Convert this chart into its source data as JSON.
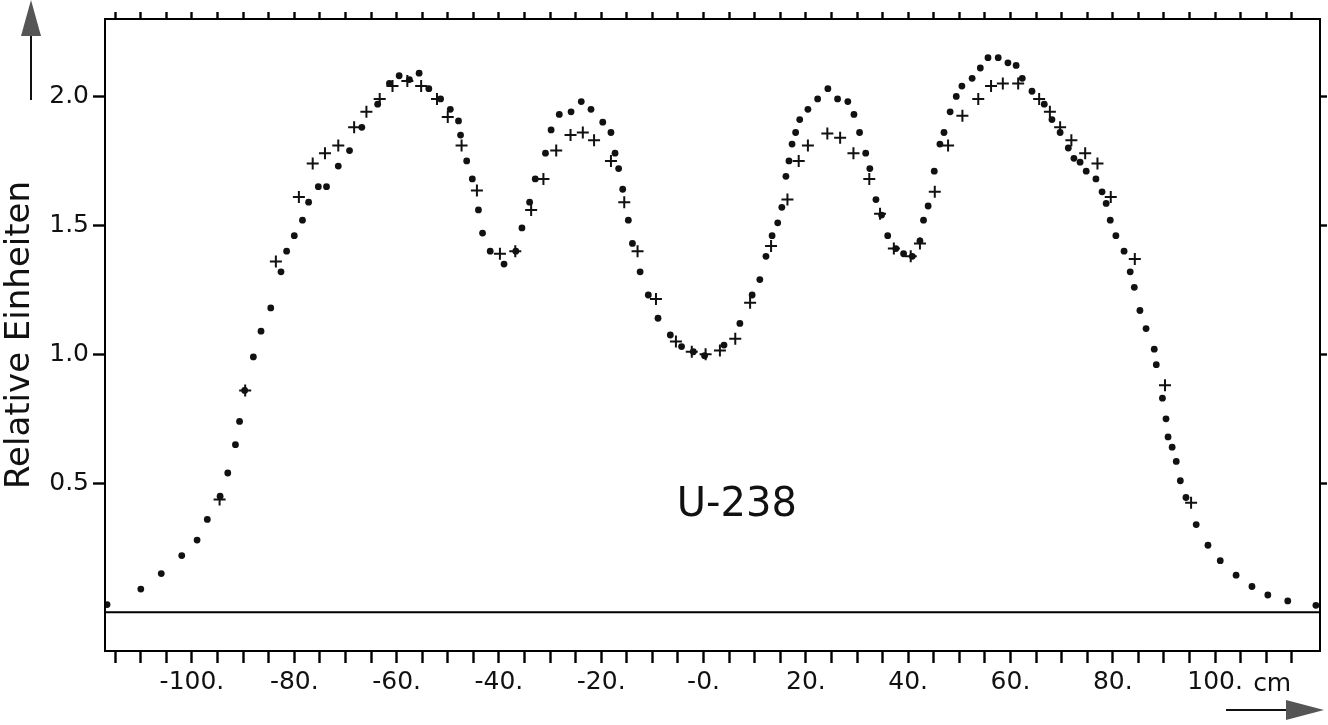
{
  "chart_data": {
    "type": "scatter",
    "ylabel": "Relative Einheiten",
    "xlabel": "cm",
    "annotations": [
      "U-238"
    ],
    "xlim": [
      -117,
      120.5
    ],
    "ylim": [
      -0.15,
      2.3
    ],
    "xticks": [
      {
        "value": -115,
        "label": null
      },
      {
        "value": -110,
        "label": null
      },
      {
        "value": -105,
        "label": null
      },
      {
        "value": -100,
        "label": "-100."
      },
      {
        "value": -95,
        "label": null
      },
      {
        "value": -90,
        "label": null
      },
      {
        "value": -85,
        "label": null
      },
      {
        "value": -80,
        "label": "-80."
      },
      {
        "value": -75,
        "label": null
      },
      {
        "value": -70,
        "label": null
      },
      {
        "value": -65,
        "label": null
      },
      {
        "value": -60,
        "label": "-60."
      },
      {
        "value": -55,
        "label": null
      },
      {
        "value": -50,
        "label": null
      },
      {
        "value": -45,
        "label": null
      },
      {
        "value": -40,
        "label": "-40."
      },
      {
        "value": -35,
        "label": null
      },
      {
        "value": -30,
        "label": null
      },
      {
        "value": -25,
        "label": null
      },
      {
        "value": -20,
        "label": "-20."
      },
      {
        "value": -15,
        "label": null
      },
      {
        "value": -10,
        "label": null
      },
      {
        "value": -5,
        "label": null
      },
      {
        "value": 0,
        "label": "-0."
      },
      {
        "value": 5,
        "label": null
      },
      {
        "value": 10,
        "label": null
      },
      {
        "value": 15,
        "label": null
      },
      {
        "value": 20,
        "label": "20."
      },
      {
        "value": 25,
        "label": null
      },
      {
        "value": 30,
        "label": null
      },
      {
        "value": 35,
        "label": null
      },
      {
        "value": 40,
        "label": "40."
      },
      {
        "value": 45,
        "label": null
      },
      {
        "value": 50,
        "label": null
      },
      {
        "value": 55,
        "label": null
      },
      {
        "value": 60,
        "label": "60."
      },
      {
        "value": 65,
        "label": null
      },
      {
        "value": 70,
        "label": null
      },
      {
        "value": 75,
        "label": null
      },
      {
        "value": 80,
        "label": "80."
      },
      {
        "value": 85,
        "label": null
      },
      {
        "value": 90,
        "label": null
      },
      {
        "value": 95,
        "label": null
      },
      {
        "value": 100,
        "label": "100."
      },
      {
        "value": 105,
        "label": null
      },
      {
        "value": 110,
        "label": null
      },
      {
        "value": 115,
        "label": null
      }
    ],
    "yticks": [
      {
        "value": 0.5,
        "label": "0.5"
      },
      {
        "value": 1,
        "label": "1.0"
      },
      {
        "value": 1.5,
        "label": "1.5"
      },
      {
        "value": 2,
        "label": "2.0"
      }
    ],
    "grid": false,
    "legend": false,
    "ref_lines": [
      {
        "axis": "y",
        "value": 0,
        "color": "#000000"
      }
    ],
    "series": [
      {
        "color": "#111111",
        "marker": "circle",
        "x": [
          -116.6,
          -110,
          -106,
          -102,
          -99,
          -97,
          -94.5,
          -93,
          -91.5,
          -90.7,
          -89.7,
          -88,
          -86.5,
          -84.6,
          -82.6,
          -81.5,
          -80,
          -78.4,
          -77.2,
          -75.3,
          -73.7,
          -71.4,
          -69.2,
          -66.8,
          -63.7,
          -61.4,
          -59.5,
          -57.5,
          -55.6,
          -53.7,
          -51.4,
          -49.5,
          -47.9,
          -47.5,
          -46.3,
          -45.2,
          -44,
          -43.2,
          -41.7,
          -39,
          -36.7,
          -35.5,
          -34,
          -32.9,
          -30.9,
          -29.8,
          -28.2,
          -25.9,
          -23.9,
          -22,
          -19.7,
          -18.1,
          -17.3,
          -16.6,
          -15.8,
          -14.7,
          -13.9,
          -12.4,
          -10.8,
          -8.9,
          -6.5,
          -4.3,
          -2,
          0.2,
          4,
          7.1,
          9.5,
          11,
          12.2,
          13.4,
          14.5,
          15.3,
          16.1,
          16.7,
          17.3,
          18,
          18.8,
          20.4,
          22.3,
          24.3,
          26.2,
          28.2,
          29.4,
          30.5,
          31.7,
          32.5,
          33.7,
          34.8,
          36,
          37.6,
          39.1,
          40.8,
          42.3,
          43,
          43.9,
          45.1,
          46.2,
          47,
          48.2,
          49.4,
          50.5,
          52.5,
          54.1,
          55.6,
          57.6,
          59.5,
          61.1,
          62.3,
          64.2,
          66.6,
          68.1,
          69.7,
          71.3,
          72.4,
          73.6,
          74.8,
          76.7,
          77.9,
          78.7,
          79.5,
          80.6,
          82.2,
          83.4,
          84.2,
          85.3,
          86.5,
          88.1,
          88.5,
          89.7,
          90.4,
          90.8,
          91.6,
          92.4,
          93.2,
          94.3,
          96.3,
          98.6,
          101,
          104.1,
          107.2,
          110.3,
          114.2,
          119.7
        ],
        "values": [
          0.03,
          0.09,
          0.15,
          0.22,
          0.28,
          0.36,
          0.45,
          0.54,
          0.65,
          0.74,
          0.86,
          0.99,
          1.09,
          1.18,
          1.32,
          1.4,
          1.46,
          1.52,
          1.59,
          1.65,
          1.65,
          1.73,
          1.79,
          1.88,
          1.97,
          2.05,
          2.08,
          2.065,
          2.09,
          2.03,
          1.99,
          1.95,
          1.905,
          1.85,
          1.75,
          1.68,
          1.56,
          1.47,
          1.4,
          1.35,
          1.4,
          1.49,
          1.59,
          1.68,
          1.78,
          1.87,
          1.93,
          1.94,
          1.98,
          1.95,
          1.9,
          1.86,
          1.78,
          1.72,
          1.64,
          1.52,
          1.43,
          1.32,
          1.23,
          1.14,
          1.075,
          1.03,
          1.01,
          0.995,
          1.036,
          1.12,
          1.23,
          1.29,
          1.38,
          1.46,
          1.51,
          1.57,
          1.69,
          1.75,
          1.815,
          1.86,
          1.91,
          1.95,
          1.99,
          2.03,
          1.99,
          1.98,
          1.93,
          1.86,
          1.78,
          1.72,
          1.6,
          1.54,
          1.46,
          1.41,
          1.39,
          1.38,
          1.44,
          1.52,
          1.575,
          1.71,
          1.815,
          1.86,
          1.94,
          2,
          2.04,
          2.07,
          2.11,
          2.15,
          2.15,
          2.13,
          2.12,
          2.07,
          2.02,
          1.97,
          1.91,
          1.86,
          1.8,
          1.76,
          1.745,
          1.71,
          1.68,
          1.63,
          1.585,
          1.52,
          1.46,
          1.4,
          1.32,
          1.26,
          1.17,
          1.1,
          1.02,
          0.96,
          0.83,
          0.75,
          0.68,
          0.64,
          0.585,
          0.51,
          0.445,
          0.34,
          0.26,
          0.2,
          0.144,
          0.1,
          0.067,
          0.044,
          0.027
        ]
      },
      {
        "color": "#111111",
        "marker": "cross",
        "x": [
          -94.6,
          -89.6,
          -83.6,
          -79.1,
          -76.4,
          -74,
          -71.4,
          -68.3,
          -65.9,
          -63.3,
          -60.8,
          -57.9,
          -55.2,
          -52.1,
          -50,
          -47.3,
          -44.3,
          -39.8,
          -36.8,
          -33.7,
          -31.3,
          -28.8,
          -26,
          -23.6,
          -21.4,
          -18.1,
          -15.5,
          -12.9,
          -9.3,
          -5.4,
          -2.3,
          0.4,
          3.2,
          6.2,
          9.1,
          13.2,
          16.4,
          18.6,
          20.4,
          24.2,
          26.7,
          29.3,
          32.4,
          34.5,
          37.2,
          40.5,
          42.3,
          45.2,
          47.8,
          50.6,
          53.7,
          56.2,
          58.5,
          61.5,
          65.6,
          67.7,
          69.7,
          71.9,
          74.6,
          77,
          79.6,
          84.3,
          90.2,
          95.3
        ],
        "values": [
          0.437,
          0.86,
          1.36,
          1.61,
          1.74,
          1.78,
          1.81,
          1.88,
          1.94,
          1.99,
          2.04,
          2.06,
          2.04,
          1.99,
          1.92,
          1.81,
          1.635,
          1.39,
          1.4,
          1.56,
          1.68,
          1.79,
          1.85,
          1.86,
          1.83,
          1.75,
          1.59,
          1.4,
          1.215,
          1.05,
          1.01,
          1,
          1.015,
          1.06,
          1.2,
          1.42,
          1.6,
          1.75,
          1.81,
          1.856,
          1.84,
          1.78,
          1.68,
          1.545,
          1.41,
          1.38,
          1.43,
          1.63,
          1.81,
          1.925,
          1.99,
          2.04,
          2.05,
          2.05,
          1.99,
          1.94,
          1.88,
          1.83,
          1.78,
          1.74,
          1.61,
          1.37,
          0.88,
          0.425
        ]
      }
    ]
  }
}
